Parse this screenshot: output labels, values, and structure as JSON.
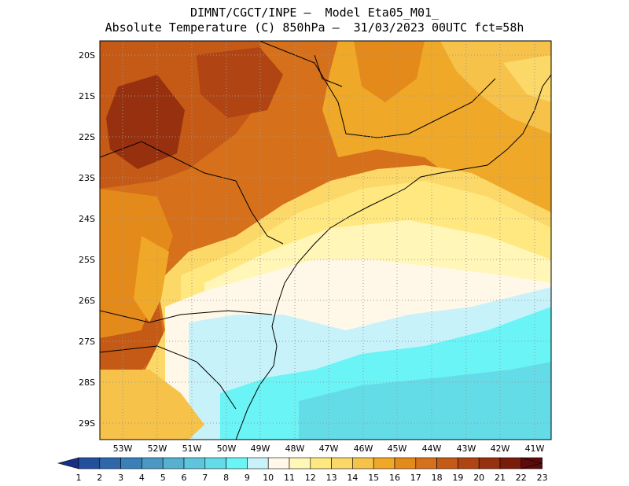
{
  "header": {
    "line1": "DIMNT/CGCT/INPE –  Model Eta05_M01_",
    "line2": "Absolute Temperature (C) 850hPa –  31/03/2023 00UTC fct=58h"
  },
  "axes": {
    "lat_labels": [
      "20S",
      "21S",
      "22S",
      "23S",
      "24S",
      "25S",
      "26S",
      "27S",
      "28S",
      "29S"
    ],
    "lon_labels": [
      "53W",
      "52W",
      "51W",
      "50W",
      "49W",
      "48W",
      "47W",
      "46W",
      "45W",
      "44W",
      "43W",
      "42W",
      "41W"
    ]
  },
  "colorbar": {
    "labels": [
      "1",
      "2",
      "3",
      "4",
      "5",
      "6",
      "7",
      "8",
      "9",
      "10",
      "11",
      "12",
      "13",
      "14",
      "15",
      "16",
      "17",
      "18",
      "19",
      "20",
      "21",
      "22",
      "23"
    ],
    "colors": [
      "#16308a",
      "#23509c",
      "#2e68aa",
      "#3a80b8",
      "#4a98c4",
      "#56b0d0",
      "#5ec6dc",
      "#64dce8",
      "#6af4f6",
      "#c8f2fa",
      "#fff8e8",
      "#fff6b8",
      "#ffe880",
      "#fcd868",
      "#f6c24a",
      "#f0a828",
      "#e48a1a",
      "#d6701a",
      "#c45a16",
      "#b04412",
      "#96300e",
      "#7a1c0a",
      "#5e0a0a"
    ]
  }
}
